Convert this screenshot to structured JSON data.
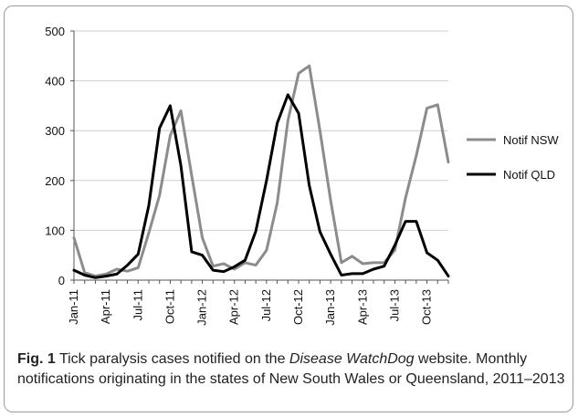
{
  "chart_data": {
    "type": "line",
    "categories": [
      "Jan-11",
      "Feb-11",
      "Mar-11",
      "Apr-11",
      "May-11",
      "Jun-11",
      "Jul-11",
      "Aug-11",
      "Sep-11",
      "Oct-11",
      "Nov-11",
      "Dec-11",
      "Jan-12",
      "Feb-12",
      "Mar-12",
      "Apr-12",
      "May-12",
      "Jun-12",
      "Jul-12",
      "Aug-12",
      "Sep-12",
      "Oct-12",
      "Nov-12",
      "Dec-12",
      "Jan-13",
      "Feb-13",
      "Mar-13",
      "Apr-13",
      "May-13",
      "Jun-13",
      "Jul-13",
      "Aug-13",
      "Sep-13",
      "Oct-13",
      "Nov-13",
      "Dec-13"
    ],
    "tick_labels": [
      "Jan-11",
      "Apr-11",
      "Jul-11",
      "Oct-11",
      "Jan-12",
      "Apr-12",
      "Jul-12",
      "Oct-12",
      "Jan-13",
      "Apr-13",
      "Jul-13",
      "Oct-13"
    ],
    "series": [
      {
        "name": "Notif NSW",
        "color": "#8c8c8c",
        "values": [
          85,
          15,
          8,
          12,
          22,
          18,
          25,
          95,
          170,
          290,
          340,
          210,
          85,
          28,
          33,
          22,
          35,
          30,
          60,
          155,
          320,
          415,
          430,
          300,
          160,
          35,
          48,
          33,
          35,
          35,
          60,
          165,
          250,
          345,
          352,
          237
        ]
      },
      {
        "name": "Notif QLD",
        "color": "#000000",
        "values": [
          20,
          10,
          5,
          8,
          12,
          30,
          52,
          150,
          305,
          350,
          230,
          57,
          50,
          20,
          17,
          27,
          40,
          98,
          200,
          315,
          372,
          335,
          190,
          97,
          52,
          10,
          13,
          13,
          22,
          28,
          70,
          118,
          118,
          55,
          40,
          8
        ]
      }
    ],
    "ylim": [
      0,
      500
    ],
    "yticks": [
      0,
      100,
      200,
      300,
      400,
      500
    ],
    "grid": true,
    "legend": "right"
  },
  "caption": {
    "label": "Fig. 1",
    "text_before": " Tick paralysis cases notified on the ",
    "italic": "Disease WatchDog",
    "text_after": " website. Monthly notifications originating in the states of New South Wales or Queensland, 2011–2013"
  }
}
